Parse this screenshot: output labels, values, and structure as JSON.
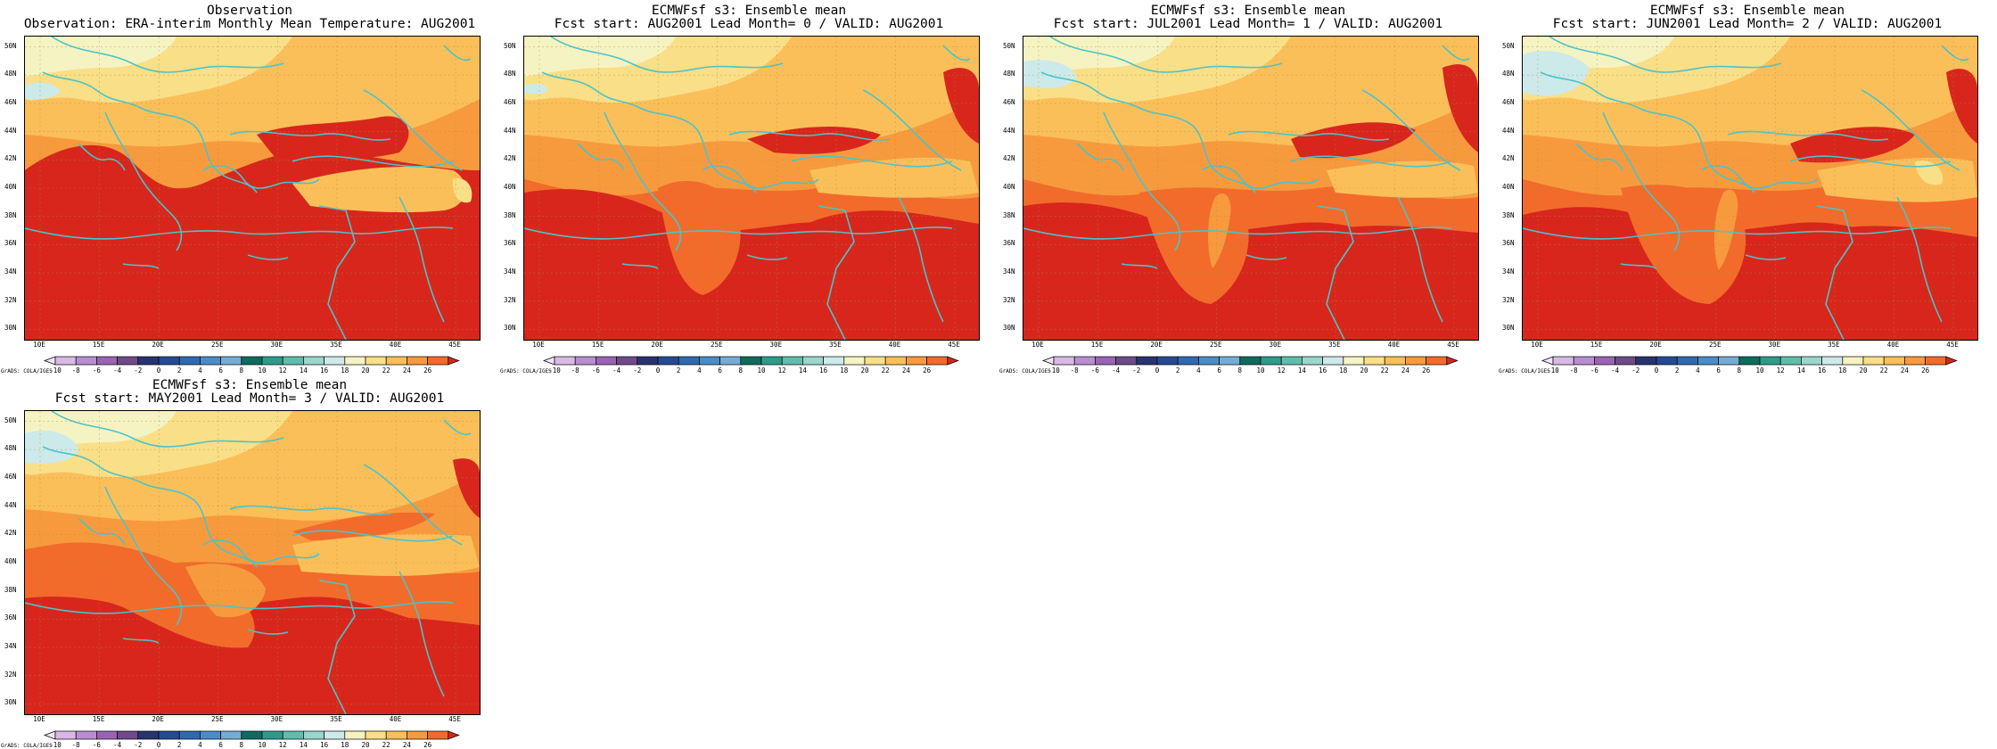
{
  "panels": [
    {
      "title_line1": "Observation",
      "title_line2": "Observation: ERA-interim Monthly Mean Temperature: AUG2001"
    },
    {
      "title_line1": "ECMWFsf s3: Ensemble mean",
      "title_line2": "Fcst start: AUG2001   Lead Month= 0 / VALID: AUG2001"
    },
    {
      "title_line1": "ECMWFsf s3: Ensemble mean",
      "title_line2": "Fcst start: JUL2001   Lead Month= 1 / VALID: AUG2001"
    },
    {
      "title_line1": "ECMWFsf s3: Ensemble mean",
      "title_line2": "Fcst start: JUN2001   Lead Month= 2 / VALID: AUG2001"
    },
    {
      "title_line1": "ECMWFsf s3: Ensemble mean",
      "title_line2": "Fcst start: MAY2001   Lead Month= 3 / VALID: AUG2001"
    }
  ],
  "lat_labels": [
    "50N",
    "48N",
    "46N",
    "44N",
    "42N",
    "40N",
    "38N",
    "36N",
    "34N",
    "32N",
    "30N"
  ],
  "lon_labels": [
    "10E",
    "15E",
    "20E",
    "25E",
    "30E",
    "35E",
    "40E",
    "45E"
  ],
  "colorbar": {
    "ticks": [
      "-10",
      "-8",
      "-6",
      "-4",
      "-2",
      "0",
      "2",
      "4",
      "6",
      "8",
      "10",
      "12",
      "14",
      "16",
      "18",
      "20",
      "22",
      "24",
      "26"
    ],
    "colors": [
      "#f0e6f7",
      "#d9b8e6",
      "#b98ed0",
      "#9a63b3",
      "#6f4a8a",
      "#27346f",
      "#254a94",
      "#2f6aaf",
      "#4a8cc6",
      "#74acd6",
      "#0e6b5e",
      "#2e9a8a",
      "#5fbdaa",
      "#9ad6cc",
      "#cdeaea",
      "#f6f3c2",
      "#f9df88",
      "#fbbf5a",
      "#f79a3e",
      "#f26b2b",
      "#d8261c"
    ],
    "credit": "GrADS: COLA/IGES"
  },
  "field_colors": {
    "c14": "#cdeaea",
    "c18": "#f6f3c2",
    "c20": "#f9df88",
    "c22": "#fbbf5a",
    "c24": "#f79a3e",
    "c26": "#f26b2b",
    "c28": "#d8261c"
  },
  "coastline_color": "#4cc3c8"
}
